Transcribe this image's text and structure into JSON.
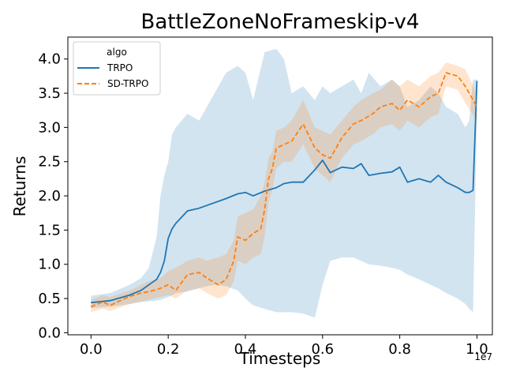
{
  "chart_data": {
    "type": "line",
    "title": "BattleZoneNoFrameskip-v4",
    "xlabel": "Timesteps",
    "ylabel": "Returns",
    "x_scale_label": "1e7",
    "xlim": [
      -0.06,
      1.04
    ],
    "ylim": [
      -0.03,
      4.32
    ],
    "x_ticks": [
      0.0,
      0.2,
      0.4,
      0.6,
      0.8,
      1.0
    ],
    "x_tick_labels": [
      "0.0",
      "0.2",
      "0.4",
      "0.6",
      "0.8",
      "1.0"
    ],
    "y_ticks": [
      0.0,
      0.5,
      1.0,
      1.5,
      2.0,
      2.5,
      3.0,
      3.5,
      4.0
    ],
    "y_tick_labels": [
      "0.0",
      "0.5",
      "1.0",
      "1.5",
      "2.0",
      "2.5",
      "3.0",
      "3.5",
      "4.0"
    ],
    "legend": {
      "title": "algo",
      "placement": "top-left",
      "entries": [
        {
          "name": "TRPO",
          "color": "#1f77b4",
          "style": "solid"
        },
        {
          "name": "SD-TRPO",
          "color": "#ff7f0e",
          "style": "dashed"
        }
      ]
    },
    "series": [
      {
        "name": "TRPO",
        "color": "#1f77b4",
        "band_color": "#1f77b4",
        "dashed": false,
        "x": [
          0.0,
          0.05,
          0.1,
          0.13,
          0.15,
          0.17,
          0.18,
          0.19,
          0.2,
          0.21,
          0.22,
          0.25,
          0.28,
          0.3,
          0.32,
          0.35,
          0.38,
          0.4,
          0.42,
          0.45,
          0.48,
          0.5,
          0.52,
          0.55,
          0.58,
          0.6,
          0.62,
          0.65,
          0.68,
          0.7,
          0.72,
          0.75,
          0.78,
          0.8,
          0.82,
          0.85,
          0.88,
          0.9,
          0.92,
          0.95,
          0.97,
          0.98,
          0.99,
          1.0
        ],
        "mean": [
          0.44,
          0.47,
          0.55,
          0.62,
          0.7,
          0.78,
          0.88,
          1.05,
          1.38,
          1.52,
          1.6,
          1.78,
          1.82,
          1.86,
          1.9,
          1.96,
          2.03,
          2.05,
          2.0,
          2.07,
          2.12,
          2.18,
          2.2,
          2.2,
          2.38,
          2.52,
          2.34,
          2.42,
          2.4,
          2.47,
          2.3,
          2.33,
          2.35,
          2.42,
          2.2,
          2.25,
          2.2,
          2.3,
          2.2,
          2.12,
          2.05,
          2.05,
          2.08,
          3.68
        ],
        "upper": [
          0.54,
          0.58,
          0.7,
          0.8,
          0.95,
          1.4,
          2.0,
          2.3,
          2.5,
          2.9,
          3.0,
          3.2,
          3.1,
          3.3,
          3.5,
          3.8,
          3.9,
          3.8,
          3.4,
          4.1,
          4.15,
          4.0,
          3.5,
          3.6,
          3.4,
          3.6,
          3.5,
          3.6,
          3.7,
          3.5,
          3.8,
          3.6,
          3.7,
          3.6,
          3.3,
          3.4,
          3.6,
          3.5,
          3.3,
          3.2,
          3.0,
          3.1,
          3.7,
          3.7
        ],
        "lower": [
          0.36,
          0.38,
          0.42,
          0.45,
          0.46,
          0.47,
          0.48,
          0.5,
          0.52,
          0.55,
          0.58,
          0.6,
          0.65,
          0.68,
          0.7,
          0.68,
          0.62,
          0.5,
          0.4,
          0.35,
          0.3,
          0.3,
          0.3,
          0.28,
          0.22,
          0.7,
          1.05,
          1.1,
          1.1,
          1.05,
          1.0,
          0.98,
          0.95,
          0.92,
          0.85,
          0.78,
          0.7,
          0.65,
          0.58,
          0.5,
          0.42,
          0.35,
          0.3,
          3.2
        ]
      },
      {
        "name": "SD-TRPO",
        "color": "#ff7f0e",
        "band_color": "#ff7f0e",
        "dashed": true,
        "x": [
          0.0,
          0.03,
          0.05,
          0.08,
          0.1,
          0.13,
          0.15,
          0.18,
          0.2,
          0.22,
          0.25,
          0.28,
          0.3,
          0.33,
          0.35,
          0.37,
          0.38,
          0.4,
          0.42,
          0.44,
          0.45,
          0.46,
          0.47,
          0.48,
          0.5,
          0.52,
          0.55,
          0.58,
          0.6,
          0.62,
          0.65,
          0.68,
          0.7,
          0.73,
          0.75,
          0.78,
          0.8,
          0.82,
          0.85,
          0.88,
          0.9,
          0.92,
          0.95,
          0.97,
          1.0
        ],
        "mean": [
          0.38,
          0.45,
          0.4,
          0.48,
          0.53,
          0.58,
          0.6,
          0.65,
          0.7,
          0.62,
          0.85,
          0.88,
          0.8,
          0.7,
          0.78,
          1.05,
          1.4,
          1.35,
          1.45,
          1.52,
          1.8,
          2.25,
          2.4,
          2.7,
          2.75,
          2.8,
          3.05,
          2.7,
          2.6,
          2.55,
          2.85,
          3.05,
          3.1,
          3.2,
          3.3,
          3.35,
          3.25,
          3.4,
          3.3,
          3.45,
          3.5,
          3.8,
          3.75,
          3.6,
          3.3
        ],
        "upper": [
          0.48,
          0.55,
          0.52,
          0.58,
          0.62,
          0.7,
          0.75,
          0.8,
          0.9,
          0.95,
          1.05,
          1.1,
          1.05,
          1.1,
          1.15,
          1.35,
          1.7,
          1.75,
          1.8,
          2.0,
          2.2,
          2.55,
          2.65,
          2.95,
          3.0,
          3.1,
          3.4,
          3.0,
          2.95,
          2.9,
          3.1,
          3.3,
          3.4,
          3.5,
          3.55,
          3.7,
          3.6,
          3.7,
          3.6,
          3.75,
          3.8,
          3.95,
          3.9,
          3.85,
          3.5
        ],
        "lower": [
          0.3,
          0.35,
          0.32,
          0.38,
          0.42,
          0.45,
          0.48,
          0.52,
          0.55,
          0.5,
          0.62,
          0.65,
          0.58,
          0.5,
          0.55,
          0.75,
          1.05,
          1.0,
          1.1,
          1.15,
          1.4,
          1.9,
          2.1,
          2.4,
          2.5,
          2.5,
          2.75,
          2.4,
          2.3,
          2.2,
          2.55,
          2.75,
          2.8,
          2.9,
          3.0,
          3.05,
          2.95,
          3.1,
          3.0,
          3.15,
          3.2,
          3.6,
          3.55,
          3.35,
          3.1
        ]
      }
    ]
  }
}
